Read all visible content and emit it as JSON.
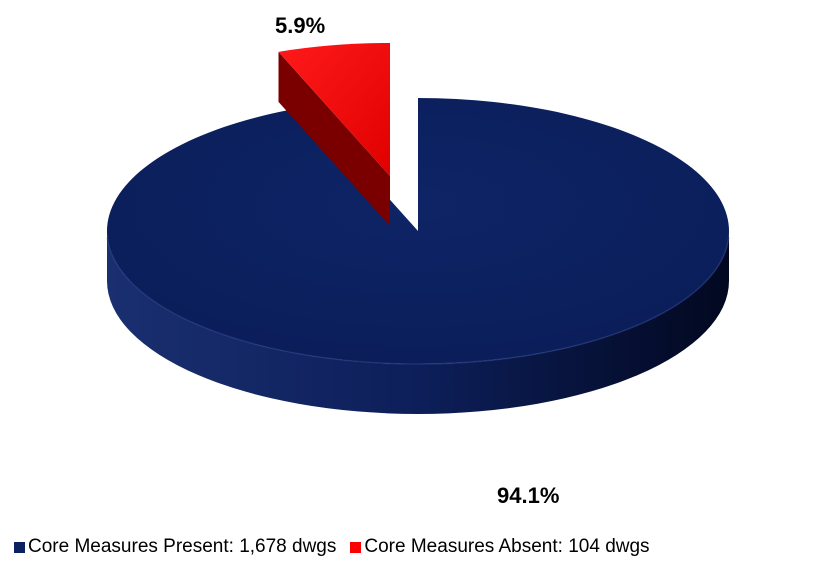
{
  "chart_data": {
    "type": "pie",
    "style": "3d-exploded",
    "slices": [
      {
        "label": "Core Measures Present: 1,678 dwgs",
        "value": 1678,
        "percent_label": "94.1%",
        "color": "#0b2160"
      },
      {
        "label": "Core Measures Absent: 104 dwgs",
        "value": 104,
        "percent_label": "5.9%",
        "color": "#ff0000"
      }
    ],
    "legend_position": "bottom"
  }
}
